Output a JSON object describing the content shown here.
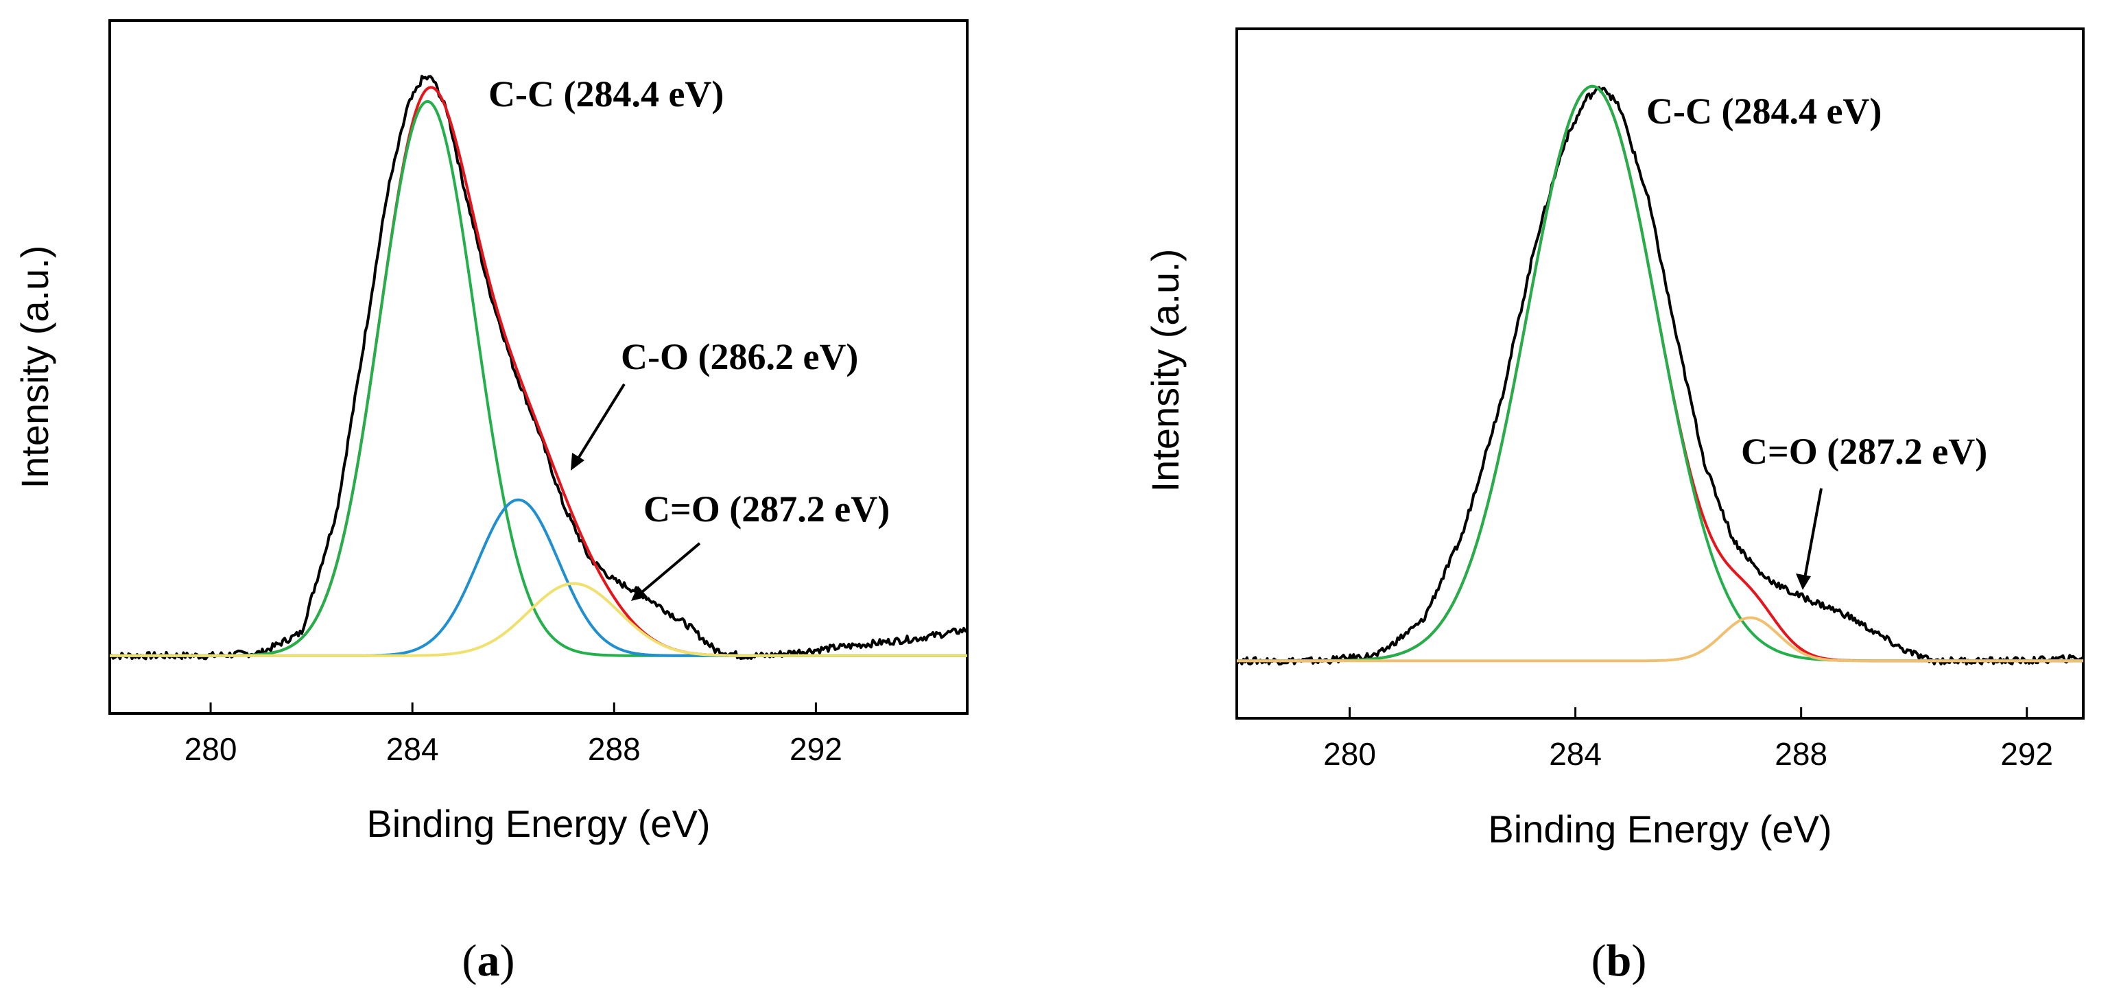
{
  "chart_data": [
    {
      "type": "line",
      "panel": "a",
      "xlabel": "Binding Energy (eV)",
      "ylabel": "Intensity (a.u.)",
      "xlim": [
        278,
        295
      ],
      "ylim": [
        -0.1,
        1.1
      ],
      "xticks": [
        280,
        284,
        288,
        292
      ],
      "yticks_shown": false,
      "peaks": [
        {
          "name": "C-C",
          "center": 284.3,
          "height": 0.96,
          "sigma": 0.95,
          "color": "#22b04b"
        },
        {
          "name": "C-O",
          "center": 286.1,
          "height": 0.27,
          "sigma": 0.8,
          "color": "#1f8fd0"
        },
        {
          "name": "C=O",
          "center": 287.2,
          "height": 0.125,
          "sigma": 0.9,
          "color": "#f0e06e"
        }
      ],
      "series": [
        {
          "name": "experimental",
          "color": "#000000",
          "x": [
            278.0,
            280.0,
            281.0,
            281.8,
            282.5,
            283.0,
            283.5,
            283.9,
            284.2,
            284.4,
            284.7,
            285.0,
            285.5,
            286.0,
            286.5,
            287.0,
            287.5,
            288.0,
            288.5,
            289.0,
            289.5,
            290.0,
            290.5,
            291.0,
            292.0,
            293.0,
            294.0,
            295.0
          ],
          "y": [
            0.0,
            0.0,
            0.005,
            0.04,
            0.25,
            0.52,
            0.8,
            0.95,
            1.0,
            1.0,
            0.94,
            0.82,
            0.64,
            0.5,
            0.39,
            0.26,
            0.17,
            0.13,
            0.11,
            0.08,
            0.05,
            0.01,
            0.0,
            0.0,
            0.01,
            0.02,
            0.03,
            0.045
          ]
        },
        {
          "name": "envelope",
          "color": "#e8141c"
        },
        {
          "name": "C-C",
          "color": "#22b04b"
        },
        {
          "name": "C-O",
          "color": "#1f8fd0"
        },
        {
          "name": "C=O",
          "color": "#f0e06e"
        }
      ],
      "annotations": [
        {
          "text": "C-C (284.4 eV)"
        },
        {
          "text": "C-O (286.2 eV)"
        },
        {
          "text": "C=O (287.2 eV)"
        }
      ],
      "caption": "(a)"
    },
    {
      "type": "line",
      "panel": "b",
      "xlabel": "Binding Energy (eV)",
      "ylabel": "Intensity (a.u.)",
      "xlim": [
        278,
        293
      ],
      "ylim": [
        -0.1,
        1.1
      ],
      "xticks": [
        280,
        284,
        288,
        292
      ],
      "yticks_shown": false,
      "peaks": [
        {
          "name": "C-C",
          "center": 284.3,
          "height": 1.0,
          "sigma": 1.15,
          "color": "#22b04b"
        },
        {
          "name": "C=O",
          "center": 287.1,
          "height": 0.075,
          "sigma": 0.5,
          "color": "#f0c070"
        }
      ],
      "series": [
        {
          "name": "experimental",
          "color": "#000000",
          "x": [
            278.0,
            279.5,
            280.5,
            281.3,
            282.0,
            282.7,
            283.3,
            283.8,
            284.2,
            284.5,
            284.8,
            285.3,
            285.8,
            286.3,
            286.8,
            287.3,
            287.8,
            288.3,
            288.8,
            289.3,
            289.8,
            290.3,
            291.0,
            292.0,
            293.0
          ],
          "y": [
            0.0,
            0.0,
            0.01,
            0.07,
            0.22,
            0.46,
            0.73,
            0.9,
            0.98,
            1.0,
            0.96,
            0.8,
            0.56,
            0.34,
            0.21,
            0.15,
            0.12,
            0.1,
            0.08,
            0.05,
            0.02,
            0.0,
            0.0,
            0.0,
            0.005
          ]
        },
        {
          "name": "envelope",
          "color": "#e8141c"
        },
        {
          "name": "C-C",
          "color": "#22b04b"
        },
        {
          "name": "C=O",
          "color": "#f0c070"
        }
      ],
      "annotations": [
        {
          "text": "C-C (284.4 eV)"
        },
        {
          "text": "C=O (287.2 eV)"
        }
      ],
      "caption": "(b)"
    }
  ]
}
